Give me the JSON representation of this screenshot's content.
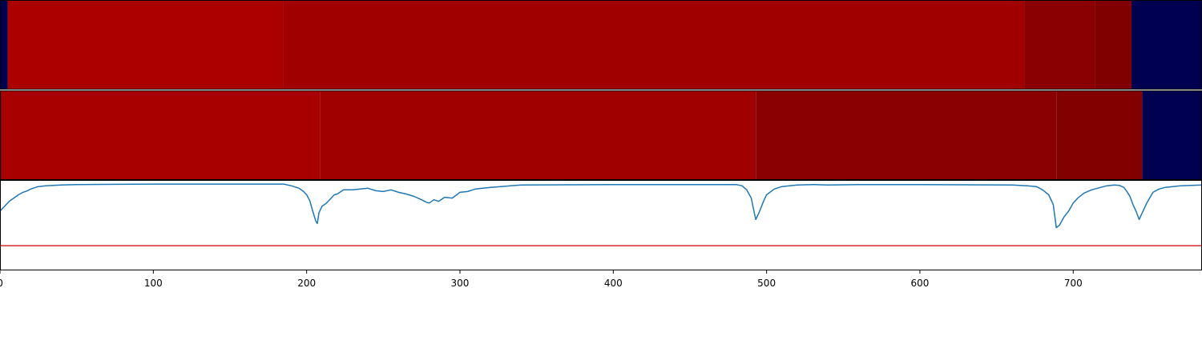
{
  "chart_data": [
    {
      "type": "heatmap",
      "title": "",
      "x_range": [
        0,
        784
      ],
      "colormap": "seismic",
      "segments": [
        {
          "x0": 0,
          "x1": 5,
          "color": "#000050"
        },
        {
          "x0": 5,
          "x1": 185,
          "color": "#aa0000"
        },
        {
          "x0": 185,
          "x1": 668,
          "color": "#a00000"
        },
        {
          "x0": 668,
          "x1": 714,
          "color": "#8a0000"
        },
        {
          "x0": 714,
          "x1": 738,
          "color": "#800000"
        },
        {
          "x0": 738,
          "x1": 784,
          "color": "#000050"
        }
      ]
    },
    {
      "type": "heatmap",
      "title": "",
      "x_range": [
        0,
        784
      ],
      "colormap": "seismic",
      "segments": [
        {
          "x0": 0,
          "x1": 209,
          "color": "#a80000"
        },
        {
          "x0": 209,
          "x1": 493,
          "color": "#a00000"
        },
        {
          "x0": 493,
          "x1": 689,
          "color": "#8a0000"
        },
        {
          "x0": 689,
          "x1": 745,
          "color": "#820000"
        },
        {
          "x0": 745,
          "x1": 784,
          "color": "#000050"
        }
      ]
    },
    {
      "type": "line",
      "title": "",
      "xlabel": "",
      "ylabel": "",
      "xlim": [
        0,
        784
      ],
      "ylim": [
        0,
        1.1
      ],
      "xticks": [
        0,
        100,
        200,
        300,
        400,
        500,
        600,
        700
      ],
      "grid": false,
      "threshold": {
        "value": 0.3,
        "color": "#d62728"
      },
      "series": [
        {
          "color": "#1f77b4",
          "x": [
            0,
            3,
            6,
            9,
            12,
            15,
            18,
            20,
            25,
            30,
            40,
            50,
            100,
            150,
            185,
            190,
            195,
            198,
            200,
            202,
            204,
            206,
            207,
            208,
            210,
            213,
            216,
            218,
            220,
            224,
            230,
            240,
            245,
            250,
            255,
            260,
            265,
            270,
            275,
            278,
            280,
            283,
            286,
            290,
            295,
            300,
            305,
            310,
            320,
            340,
            400,
            480,
            484,
            487,
            490,
            492,
            493,
            495,
            498,
            500,
            505,
            510,
            520,
            530,
            540,
            560,
            600,
            660,
            670,
            676,
            680,
            684,
            687,
            689,
            691,
            694,
            697,
            700,
            703,
            707,
            712,
            718,
            722,
            727,
            730,
            733,
            735,
            737,
            739,
            741,
            743,
            745,
            748,
            752,
            756,
            760,
            770,
            784
          ],
          "y": [
            0.72,
            0.78,
            0.84,
            0.88,
            0.92,
            0.95,
            0.97,
            0.99,
            1.02,
            1.03,
            1.04,
            1.045,
            1.05,
            1.05,
            1.05,
            1.03,
            1.0,
            0.96,
            0.92,
            0.85,
            0.72,
            0.6,
            0.57,
            0.7,
            0.78,
            0.82,
            0.88,
            0.92,
            0.93,
            0.98,
            0.98,
            1.0,
            0.97,
            0.96,
            0.98,
            0.95,
            0.93,
            0.9,
            0.86,
            0.83,
            0.82,
            0.86,
            0.84,
            0.89,
            0.88,
            0.95,
            0.96,
            0.99,
            1.01,
            1.04,
            1.045,
            1.045,
            1.03,
            0.98,
            0.88,
            0.7,
            0.62,
            0.7,
            0.84,
            0.92,
            0.99,
            1.02,
            1.04,
            1.045,
            1.04,
            1.045,
            1.045,
            1.04,
            1.03,
            1.02,
            0.98,
            0.92,
            0.8,
            0.52,
            0.55,
            0.65,
            0.72,
            0.82,
            0.88,
            0.94,
            0.98,
            1.01,
            1.03,
            1.04,
            1.035,
            1.01,
            0.96,
            0.9,
            0.8,
            0.72,
            0.62,
            0.7,
            0.82,
            0.95,
            0.99,
            1.01,
            1.03,
            1.04
          ]
        }
      ]
    }
  ]
}
